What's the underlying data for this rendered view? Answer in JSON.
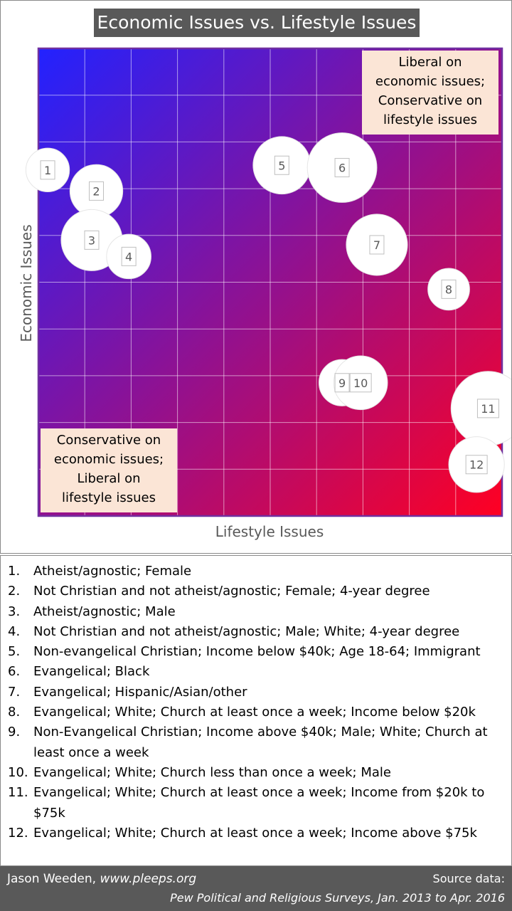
{
  "chart_data": {
    "type": "scatter",
    "title": "Economic Issues vs. Lifestyle Issues",
    "xlabel": "Lifestyle Issues",
    "ylabel": "Economic Issues",
    "xlim": [
      0,
      10
    ],
    "ylim": [
      0,
      10
    ],
    "grid": true,
    "points": [
      {
        "label": "1",
        "x": 0.2,
        "y": 7.4,
        "size": 0.47
      },
      {
        "label": "2",
        "x": 1.25,
        "y": 6.95,
        "size": 0.57
      },
      {
        "label": "3",
        "x": 1.15,
        "y": 5.9,
        "size": 0.66
      },
      {
        "label": "4",
        "x": 1.95,
        "y": 5.55,
        "size": 0.48
      },
      {
        "label": "5",
        "x": 5.25,
        "y": 7.5,
        "size": 0.62
      },
      {
        "label": "6",
        "x": 6.55,
        "y": 7.45,
        "size": 0.75
      },
      {
        "label": "7",
        "x": 7.3,
        "y": 5.8,
        "size": 0.66
      },
      {
        "label": "8",
        "x": 8.85,
        "y": 4.85,
        "size": 0.45
      },
      {
        "label": "9",
        "x": 6.55,
        "y": 2.85,
        "size": 0.5
      },
      {
        "label": "10",
        "x": 6.95,
        "y": 2.85,
        "size": 0.58
      },
      {
        "label": "11",
        "x": 9.7,
        "y": 2.3,
        "size": 0.8
      },
      {
        "label": "12",
        "x": 9.45,
        "y": 1.1,
        "size": 0.6
      }
    ],
    "annotations": [
      {
        "id": "top-right",
        "position": "top-right",
        "text": [
          "Liberal on",
          "economic issues;",
          "Conservative on",
          "lifestyle issues"
        ]
      },
      {
        "id": "bottom-left",
        "position": "bottom-left",
        "text": [
          "Conservative on",
          "economic issues;",
          "Liberal on",
          "lifestyle issues"
        ]
      }
    ],
    "gradient": {
      "top_left": "#2222ff",
      "bottom_right": "#ff0022"
    }
  },
  "legend_items": [
    {
      "num": "1.",
      "text": "Atheist/agnostic; Female"
    },
    {
      "num": "2.",
      "text": "Not Christian and not atheist/agnostic; Female; 4-year degree"
    },
    {
      "num": "3.",
      "text": "Atheist/agnostic; Male"
    },
    {
      "num": "4.",
      "text": "Not Christian and not atheist/agnostic; Male; White; 4-year degree"
    },
    {
      "num": "5.",
      "text": "Non-evangelical Christian; Income below $40k; Age 18-64; Immigrant"
    },
    {
      "num": "6.",
      "text": "Evangelical; Black"
    },
    {
      "num": "7.",
      "text": "Evangelical; Hispanic/Asian/other"
    },
    {
      "num": "8.",
      "text": "Evangelical; White; Church at least once a week; Income below $20k"
    },
    {
      "num": "9.",
      "text": "Non-Evangelical Christian; Income above $40k; Male; White; Church at least once a week"
    },
    {
      "num": "10.",
      "text": "Evangelical; White; Church less than once a week; Male"
    },
    {
      "num": "11.",
      "text": "Evangelical; White; Church at least once a week; Income from $20k to $75k"
    },
    {
      "num": "12.",
      "text": "Evangelical; White; Church at least once a week; Income above $75k"
    }
  ],
  "footer": {
    "author": "Jason Weeden, ",
    "site": "www.pleeps.org",
    "source_label": "Source data:",
    "source": "Pew Political and Religious Surveys, Jan. 2013 to Apr. 2016"
  }
}
